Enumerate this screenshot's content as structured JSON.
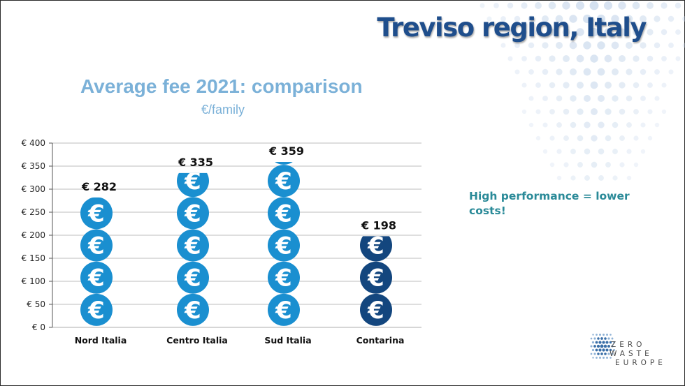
{
  "slide": {
    "title": "Treviso region, Italy",
    "note": "High performance = lower costs!"
  },
  "logo": {
    "line1": "ZERO",
    "line2": "WASTE",
    "line3": "EUROPE"
  },
  "colors": {
    "title": "#1f4e8c",
    "chart_title": "#7bb1d8",
    "euro_light": "#1a8fd0",
    "euro_dark": "#13467e",
    "note": "#2a8a98",
    "grid": "#bdbdbd"
  },
  "chart_data": {
    "type": "bar",
    "title": "Average fee 2021: comparison",
    "subtitle": "€/family",
    "categories": [
      "Nord Italia",
      "Centro Italia",
      "Sud Italia",
      "Contarina"
    ],
    "values": [
      282,
      335,
      359,
      198
    ],
    "data_labels": [
      "€ 282",
      "€ 335",
      "€ 359",
      "€ 198"
    ],
    "yticks": [
      "€ 0",
      "€ 50",
      "€ 100",
      "€ 150",
      "€ 200",
      "€ 250",
      "€ 300",
      "€ 350",
      "€ 400"
    ],
    "ylim": [
      0,
      400
    ],
    "unit_per_icon": 70,
    "icon": "euro-coin-icon",
    "highlight_category": "Contarina",
    "grid": true,
    "legend": "none"
  }
}
